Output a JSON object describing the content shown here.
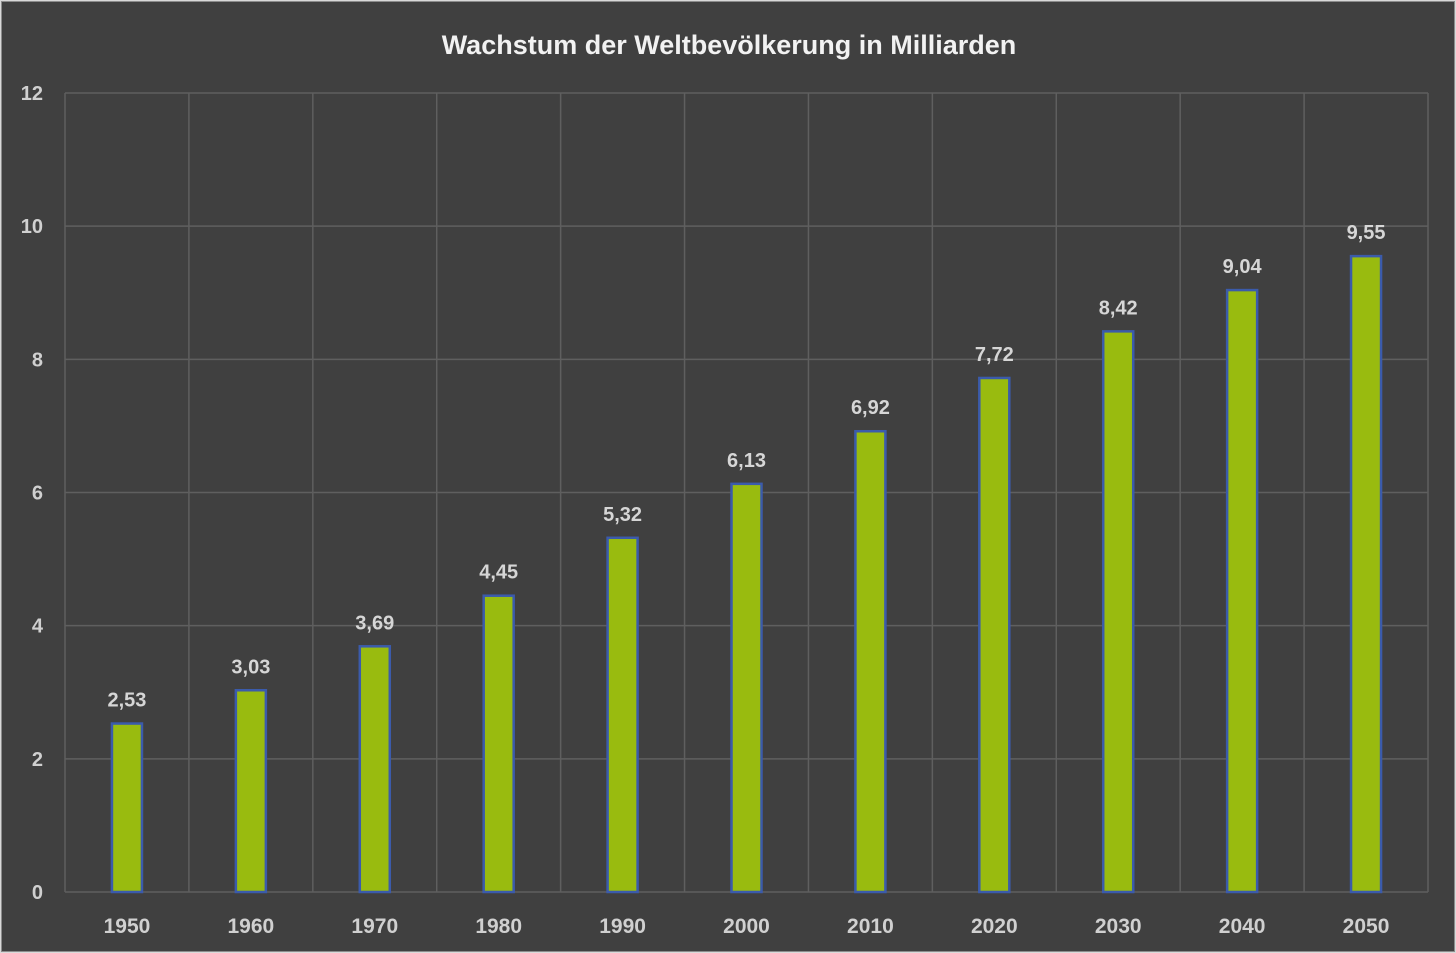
{
  "chart_data": {
    "type": "bar",
    "title": "Wachstum der Weltbevölkerung in Milliarden",
    "categories": [
      "1950",
      "1960",
      "1970",
      "1980",
      "1990",
      "2000",
      "2010",
      "2020",
      "2030",
      "2040",
      "2050"
    ],
    "values": [
      2.53,
      3.03,
      3.69,
      4.45,
      5.32,
      6.13,
      6.92,
      7.72,
      8.42,
      9.04,
      9.55
    ],
    "data_labels": [
      "2,53",
      "3,03",
      "3,69",
      "4,45",
      "5,32",
      "6,13",
      "6,92",
      "7,72",
      "8,42",
      "9,04",
      "9,55"
    ],
    "yticks": [
      "0",
      "2",
      "4",
      "6",
      "8",
      "10",
      "12"
    ],
    "ylim": [
      0,
      12
    ],
    "xlabel": "",
    "ylabel": "",
    "grid": true,
    "legend": "none",
    "colors": {
      "background": "#404040",
      "bar_fill": "#99bb0f",
      "bar_outline": "#3b5bab",
      "gridline": "#5f5f5f",
      "text": "#d0d0d0"
    }
  }
}
